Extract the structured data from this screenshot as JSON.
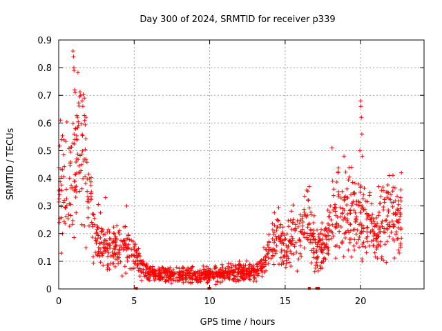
{
  "chart_data": {
    "type": "scatter",
    "title": "Day 300 of 2024, SRMTID for receiver p339",
    "xlabel": "GPS time / hours",
    "ylabel": "SRMTID / TECUs",
    "xlim": [
      0,
      24.2
    ],
    "ylim": [
      0,
      0.9
    ],
    "xticks": [
      0,
      5,
      10,
      15,
      20
    ],
    "yticks": [
      0,
      0.1,
      0.2,
      0.3,
      0.4,
      0.5,
      0.6,
      0.7,
      0.8,
      0.9
    ],
    "xtick_labels": [
      "0",
      "5",
      "10",
      "15",
      "20"
    ],
    "ytick_labels": [
      "0",
      "0.1",
      "0.2",
      "0.3",
      "0.4",
      "0.5",
      "0.6",
      "0.7",
      "0.8",
      "0.9"
    ],
    "grid": true,
    "marker": "+",
    "color": "#ff0000",
    "trend": {
      "x": [
        0,
        0.5,
        1.0,
        1.5,
        2.0,
        2.5,
        3,
        3.5,
        4,
        4.5,
        5,
        5.5,
        6,
        7,
        8,
        9,
        10,
        11,
        12,
        13,
        13.5,
        14,
        14.5,
        15,
        15.5,
        16,
        16.5,
        17,
        17.5,
        18,
        18.5,
        19,
        19.5,
        20,
        20.5,
        21,
        21.5,
        22,
        22.5,
        22.7
      ],
      "y": [
        0.33,
        0.36,
        0.42,
        0.52,
        0.3,
        0.18,
        0.15,
        0.14,
        0.16,
        0.15,
        0.12,
        0.08,
        0.06,
        0.05,
        0.05,
        0.05,
        0.05,
        0.06,
        0.06,
        0.06,
        0.08,
        0.14,
        0.19,
        0.14,
        0.18,
        0.2,
        0.25,
        0.15,
        0.15,
        0.22,
        0.28,
        0.25,
        0.3,
        0.26,
        0.22,
        0.18,
        0.24,
        0.26,
        0.22,
        0.25
      ]
    },
    "peaks": [
      {
        "x": 0.12,
        "y": 0.61
      },
      {
        "x": 0.2,
        "y": 0.54
      },
      {
        "x": 0.95,
        "y": 0.86
      },
      {
        "x": 0.98,
        "y": 0.84
      },
      {
        "x": 1.0,
        "y": 0.8
      },
      {
        "x": 1.02,
        "y": 0.79
      },
      {
        "x": 1.05,
        "y": 0.72
      },
      {
        "x": 1.1,
        "y": 0.71
      },
      {
        "x": 1.45,
        "y": 0.7
      },
      {
        "x": 1.55,
        "y": 0.68
      },
      {
        "x": 1.6,
        "y": 0.66
      },
      {
        "x": 1.7,
        "y": 0.69
      },
      {
        "x": 4.5,
        "y": 0.3
      },
      {
        "x": 3.1,
        "y": 0.33
      },
      {
        "x": 14.3,
        "y": 0.23
      },
      {
        "x": 16.6,
        "y": 0.37
      },
      {
        "x": 18.1,
        "y": 0.51
      },
      {
        "x": 18.5,
        "y": 0.42
      },
      {
        "x": 18.9,
        "y": 0.48
      },
      {
        "x": 19.4,
        "y": 0.44
      },
      {
        "x": 19.95,
        "y": 0.5
      },
      {
        "x": 20.0,
        "y": 0.68
      },
      {
        "x": 20.02,
        "y": 0.66
      },
      {
        "x": 20.05,
        "y": 0.62
      },
      {
        "x": 20.08,
        "y": 0.56
      },
      {
        "x": 20.1,
        "y": 0.48
      },
      {
        "x": 21.2,
        "y": 0.37
      },
      {
        "x": 21.9,
        "y": 0.41
      },
      {
        "x": 22.7,
        "y": 0.42
      }
    ],
    "zero_points": [
      {
        "x": 5.15,
        "y": 0
      },
      {
        "x": 9.95,
        "y": 0
      },
      {
        "x": 10.0,
        "y": 0
      },
      {
        "x": 16.6,
        "y": 0
      },
      {
        "x": 17.1,
        "y": 0
      },
      {
        "x": 17.2,
        "y": 0
      }
    ],
    "data_range": [
      0,
      22.7
    ]
  }
}
